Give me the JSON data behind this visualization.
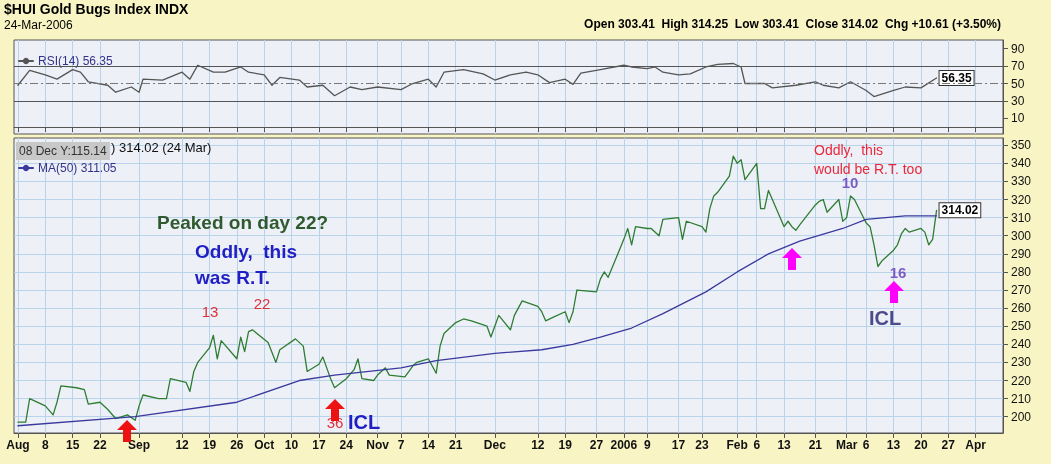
{
  "chart_data": [
    {
      "type": "line",
      "title": "$HUI Gold Bugs Index INDX",
      "subtitle": "24-Mar-2006",
      "annotations": [
        "Open 303.41  High 314.25  Low 303.41  Close 314.02  Chg +10.61 (+3.50%)"
      ],
      "xlim": [
        "2005-07-31",
        "2006-04-10"
      ],
      "xticks": [
        {
          "value": "2005-08-01",
          "label": null
        },
        {
          "value": "2005-08-08",
          "label": null
        },
        {
          "value": "2005-08-15",
          "label": null
        },
        {
          "value": "2005-08-22",
          "label": null
        },
        {
          "value": "2005-09-01",
          "label": null
        },
        {
          "value": "2005-09-12",
          "label": null
        },
        {
          "value": "2005-09-19",
          "label": null
        },
        {
          "value": "2005-09-26",
          "label": null
        },
        {
          "value": "2005-10-03",
          "label": null
        },
        {
          "value": "2005-10-10",
          "label": null
        },
        {
          "value": "2005-10-17",
          "label": null
        },
        {
          "value": "2005-10-24",
          "label": null
        },
        {
          "value": "2005-11-01",
          "label": null
        },
        {
          "value": "2005-11-07",
          "label": null
        },
        {
          "value": "2005-11-14",
          "label": null
        },
        {
          "value": "2005-11-21",
          "label": null
        },
        {
          "value": "2005-12-01",
          "label": null
        },
        {
          "value": "2005-12-12",
          "label": null
        },
        {
          "value": "2005-12-19",
          "label": null
        },
        {
          "value": "2005-12-27",
          "label": null
        },
        {
          "value": "2006-01-03",
          "label": null
        },
        {
          "value": "2006-01-09",
          "label": null
        },
        {
          "value": "2006-01-17",
          "label": null
        },
        {
          "value": "2006-01-23",
          "label": null
        },
        {
          "value": "2006-02-01",
          "label": null
        },
        {
          "value": "2006-02-06",
          "label": null
        },
        {
          "value": "2006-02-13",
          "label": null
        },
        {
          "value": "2006-02-21",
          "label": null
        },
        {
          "value": "2006-03-01",
          "label": null
        },
        {
          "value": "2006-03-06",
          "label": null
        },
        {
          "value": "2006-03-13",
          "label": null
        },
        {
          "value": "2006-03-20",
          "label": null
        },
        {
          "value": "2006-03-27",
          "label": null
        },
        {
          "value": "2006-04-03",
          "label": null
        }
      ],
      "ylim": [
        -8,
        100
      ],
      "yticks": [
        10,
        30,
        50,
        70,
        90
      ],
      "tick_labels": "y",
      "grid": "x",
      "legend": "top left",
      "marker": "none",
      "line_style": "solid",
      "ref_lines": [
        {
          "axis": "y",
          "value": 70,
          "color": "#555555",
          "line_style": "solid"
        },
        {
          "axis": "y",
          "value": 30,
          "color": "#555555",
          "line_style": "solid"
        },
        {
          "axis": "y",
          "value": 50,
          "color": "#777777",
          "line_style": "dashed"
        }
      ],
      "series": [
        {
          "name": "RSI(14) 56.35",
          "color": "#555555",
          "x": [
            "2005-08-01",
            "2005-08-04",
            "2005-08-08",
            "2005-08-11",
            "2005-08-15",
            "2005-08-17",
            "2005-08-19",
            "2005-08-24",
            "2005-08-26",
            "2005-08-30",
            "2005-09-01",
            "2005-09-02",
            "2005-09-07",
            "2005-09-12",
            "2005-09-14",
            "2005-09-16",
            "2005-09-20",
            "2005-09-23",
            "2005-09-27",
            "2005-09-29",
            "2005-10-03",
            "2005-10-05",
            "2005-10-07",
            "2005-10-12",
            "2005-10-14",
            "2005-10-18",
            "2005-10-21",
            "2005-10-25",
            "2005-10-28",
            "2005-11-01",
            "2005-11-07",
            "2005-11-10",
            "2005-11-14",
            "2005-11-16",
            "2005-11-18",
            "2005-11-23",
            "2005-11-28",
            "2005-12-01",
            "2005-12-05",
            "2005-12-09",
            "2005-12-12",
            "2005-12-15",
            "2005-12-19",
            "2005-12-21",
            "2005-12-23",
            "2005-12-28",
            "2006-01-03",
            "2006-01-05",
            "2006-01-09",
            "2006-01-11",
            "2006-01-13",
            "2006-01-17",
            "2006-01-20",
            "2006-01-24",
            "2006-01-27",
            "2006-01-31",
            "2006-02-02",
            "2006-02-03",
            "2006-02-08",
            "2006-02-10",
            "2006-02-16",
            "2006-02-21",
            "2006-02-23",
            "2006-02-27",
            "2006-03-02",
            "2006-03-06",
            "2006-03-08",
            "2006-03-13",
            "2006-03-16",
            "2006-03-20",
            "2006-03-24"
          ],
          "values": [
            48,
            65,
            60,
            55,
            66,
            63,
            52,
            48,
            40,
            46,
            40,
            55,
            54,
            63,
            55,
            71,
            63,
            63,
            69,
            63,
            60,
            48,
            57,
            54,
            46,
            48,
            36,
            46,
            43,
            46,
            43,
            50,
            55,
            46,
            63,
            66,
            61,
            54,
            60,
            63,
            60,
            51,
            55,
            49,
            62,
            66,
            71,
            69,
            67,
            69,
            63,
            60,
            61,
            69,
            72,
            73,
            69,
            50,
            50,
            45,
            48,
            52,
            48,
            45,
            52,
            42,
            35,
            42,
            46,
            45,
            56.35
          ],
          "value_labels": [
            null,
            null,
            null,
            null,
            null,
            null,
            null,
            null,
            null,
            null,
            null,
            null,
            null,
            null,
            null,
            null,
            null,
            null,
            null,
            null,
            null,
            null,
            null,
            null,
            null,
            null,
            null,
            null,
            null,
            null,
            null,
            null,
            null,
            null,
            null,
            null,
            null,
            null,
            null,
            null,
            null,
            null,
            null,
            null,
            null,
            null,
            null,
            null,
            null,
            null,
            null,
            null,
            null,
            null,
            null,
            null,
            null,
            null,
            null,
            null,
            null,
            null,
            null,
            null,
            null,
            null,
            null,
            null,
            null,
            null,
            "56.35"
          ]
        }
      ]
    },
    {
      "type": "line",
      "annotations": [
        "08 Dec Y:115.14",
        ") 314.02 (24 Mar)",
        "Peaked on day 22?",
        "Oddly,  this\nwas R.T.",
        "Oddly,  this\nwould be R.T. too",
        "13",
        "22",
        "36",
        "ICL",
        "10",
        "16",
        "ICL"
      ],
      "xlim": [
        "2005-07-31",
        "2006-04-10"
      ],
      "xticks": [
        {
          "value": "2005-08-01",
          "label": "Aug"
        },
        {
          "value": "2005-08-08",
          "label": "8"
        },
        {
          "value": "2005-08-15",
          "label": "15"
        },
        {
          "value": "2005-08-22",
          "label": "22"
        },
        {
          "value": "2005-09-01",
          "label": "Sep"
        },
        {
          "value": "2005-09-12",
          "label": "12"
        },
        {
          "value": "2005-09-19",
          "label": "19"
        },
        {
          "value": "2005-09-26",
          "label": "26"
        },
        {
          "value": "2005-10-03",
          "label": "Oct"
        },
        {
          "value": "2005-10-10",
          "label": "10"
        },
        {
          "value": "2005-10-17",
          "label": "17"
        },
        {
          "value": "2005-10-24",
          "label": "24"
        },
        {
          "value": "2005-11-01",
          "label": "Nov"
        },
        {
          "value": "2005-11-07",
          "label": "7"
        },
        {
          "value": "2005-11-14",
          "label": "14"
        },
        {
          "value": "2005-11-21",
          "label": "21"
        },
        {
          "value": "2005-12-01",
          "label": "Dec"
        },
        {
          "value": "2005-12-12",
          "label": "12"
        },
        {
          "value": "2005-12-19",
          "label": "19"
        },
        {
          "value": "2005-12-27",
          "label": "27"
        },
        {
          "value": "2006-01-03",
          "label": "2006"
        },
        {
          "value": "2006-01-09",
          "label": "9"
        },
        {
          "value": "2006-01-17",
          "label": "17"
        },
        {
          "value": "2006-01-23",
          "label": "23"
        },
        {
          "value": "2006-02-01",
          "label": "Feb"
        },
        {
          "value": "2006-02-06",
          "label": "6"
        },
        {
          "value": "2006-02-13",
          "label": "13"
        },
        {
          "value": "2006-02-21",
          "label": "21"
        },
        {
          "value": "2006-03-01",
          "label": "Mar"
        },
        {
          "value": "2006-03-06",
          "label": "6"
        },
        {
          "value": "2006-03-13",
          "label": "13"
        },
        {
          "value": "2006-03-20",
          "label": "20"
        },
        {
          "value": "2006-03-27",
          "label": "27"
        },
        {
          "value": "2006-04-03",
          "label": "Apr"
        }
      ],
      "ylim": [
        191,
        354
      ],
      "yticks": [
        200,
        210,
        220,
        230,
        240,
        250,
        260,
        270,
        280,
        290,
        300,
        310,
        320,
        330,
        340,
        350
      ],
      "grid": true,
      "legend": "top left",
      "marker": "none",
      "line_style": "solid",
      "series": [
        {
          "color": "#2e7d32",
          "x": [
            "2005-08-01",
            "2005-08-03",
            "2005-08-04",
            "2005-08-08",
            "2005-08-10",
            "2005-08-11",
            "2005-08-12",
            "2005-08-16",
            "2005-08-18",
            "2005-08-19",
            "2005-08-22",
            "2005-08-24",
            "2005-08-26",
            "2005-08-29",
            "2005-08-31",
            "2005-09-01",
            "2005-09-02",
            "2005-09-06",
            "2005-09-08",
            "2005-09-09",
            "2005-09-13",
            "2005-09-14",
            "2005-09-15",
            "2005-09-16",
            "2005-09-19",
            "2005-09-20",
            "2005-09-21",
            "2005-09-22",
            "2005-09-26",
            "2005-09-27",
            "2005-09-28",
            "2005-09-29",
            "2005-09-30",
            "2005-10-04",
            "2005-10-06",
            "2005-10-07",
            "2005-10-11",
            "2005-10-13",
            "2005-10-14",
            "2005-10-17",
            "2005-10-18",
            "2005-10-19",
            "2005-10-20",
            "2005-10-21",
            "2005-10-24",
            "2005-10-26",
            "2005-10-27",
            "2005-10-28",
            "2005-10-31",
            "2005-11-01",
            "2005-11-03",
            "2005-11-04",
            "2005-11-08",
            "2005-11-10",
            "2005-11-11",
            "2005-11-14",
            "2005-11-16",
            "2005-11-17",
            "2005-11-18",
            "2005-11-21",
            "2005-11-23",
            "2005-11-25",
            "2005-11-29",
            "2005-11-30",
            "2005-12-01",
            "2005-12-02",
            "2005-12-05",
            "2005-12-06",
            "2005-12-08",
            "2005-12-12",
            "2005-12-13",
            "2005-12-14",
            "2005-12-16",
            "2005-12-19",
            "2005-12-20",
            "2005-12-21",
            "2005-12-22",
            "2005-12-27",
            "2005-12-28",
            "2005-12-29",
            "2005-12-30",
            "2006-01-03",
            "2006-01-04",
            "2006-01-05",
            "2006-01-06",
            "2006-01-09",
            "2006-01-10",
            "2006-01-12",
            "2006-01-13",
            "2006-01-17",
            "2006-01-18",
            "2006-01-19",
            "2006-01-23",
            "2006-01-24",
            "2006-01-25",
            "2006-01-26",
            "2006-01-27",
            "2006-01-30",
            "2006-01-31",
            "2006-02-01",
            "2006-02-02",
            "2006-02-03",
            "2006-02-06",
            "2006-02-07",
            "2006-02-08",
            "2006-02-09",
            "2006-02-10",
            "2006-02-13",
            "2006-02-14",
            "2006-02-15",
            "2006-02-16",
            "2006-02-17",
            "2006-02-21",
            "2006-02-22",
            "2006-02-23",
            "2006-02-24",
            "2006-02-27",
            "2006-02-28",
            "2006-03-01",
            "2006-03-02",
            "2006-03-03",
            "2006-03-06",
            "2006-03-07",
            "2006-03-08",
            "2006-03-09",
            "2006-03-10",
            "2006-03-13",
            "2006-03-14",
            "2006-03-15",
            "2006-03-16",
            "2006-03-17",
            "2006-03-20",
            "2006-03-21",
            "2006-03-22",
            "2006-03-23",
            "2006-03-24"
          ],
          "values": [
            197,
            197,
            210,
            206,
            201,
            208,
            217,
            216,
            215,
            207,
            208,
            204,
            199,
            201,
            198,
            206,
            212,
            210,
            210,
            221,
            219,
            214,
            225,
            230,
            238,
            245,
            232,
            242,
            232,
            244,
            236,
            247,
            248,
            241,
            230,
            237,
            243,
            239,
            225,
            229,
            233,
            227,
            221,
            216,
            221,
            226,
            232,
            221,
            220,
            223,
            227,
            223,
            222,
            228,
            230,
            232,
            224,
            239,
            246,
            252,
            254,
            253,
            250,
            244,
            250,
            256,
            248,
            256,
            264,
            261,
            258,
            253,
            255,
            258,
            252,
            258,
            270,
            269,
            276,
            280,
            277,
            298,
            304,
            295,
            305,
            304,
            304,
            300,
            309,
            310,
            298,
            308,
            305,
            302,
            315,
            322,
            324,
            333,
            344,
            340,
            342,
            331,
            340,
            315,
            315,
            325,
            320,
            305,
            308,
            305,
            303,
            306,
            317,
            319,
            320,
            313,
            320,
            308,
            310,
            322,
            320,
            307,
            305,
            295,
            283,
            286,
            292,
            295,
            301,
            304,
            302,
            304,
            302,
            295,
            298,
            314.02
          ],
          "value_labels": [
            null,
            null,
            null,
            null,
            null,
            null,
            null,
            null,
            null,
            null,
            null,
            null,
            null,
            null,
            null,
            null,
            null,
            null,
            null,
            null,
            null,
            null,
            null,
            null,
            null,
            null,
            null,
            null,
            null,
            null,
            null,
            null,
            null,
            null,
            null,
            null,
            null,
            null,
            null,
            null,
            null,
            null,
            null,
            null,
            null,
            null,
            null,
            null,
            null,
            null,
            null,
            null,
            null,
            null,
            null,
            null,
            null,
            null,
            null,
            null,
            null,
            null,
            null,
            null,
            null,
            null,
            null,
            null,
            null,
            null,
            null,
            null,
            null,
            null,
            null,
            null,
            null,
            null,
            null,
            null,
            null,
            null,
            null,
            null,
            null,
            null,
            null,
            null,
            null,
            null,
            null,
            null,
            null,
            null,
            null,
            null,
            null,
            null,
            null,
            null,
            null,
            null,
            null,
            null,
            null,
            null,
            null,
            null,
            null,
            null,
            null,
            null,
            null,
            null,
            null,
            null,
            null,
            null,
            null,
            null,
            null,
            null,
            null,
            null,
            null,
            null,
            null,
            null,
            null,
            null,
            null,
            null,
            null,
            null,
            null,
            "314.02"
          ]
        },
        {
          "name": "MA(50) 311.05",
          "color": "#3a3a9e",
          "x": [
            "2005-08-01",
            "2005-08-31",
            "2005-09-26",
            "2005-10-12",
            "2005-10-21",
            "2005-11-07",
            "2005-11-16",
            "2005-12-01",
            "2005-12-13",
            "2005-12-21",
            "2005-12-28",
            "2006-01-05",
            "2006-01-13",
            "2006-01-24",
            "2006-02-01",
            "2006-02-09",
            "2006-02-17",
            "2006-02-28",
            "2006-03-06",
            "2006-03-16",
            "2006-03-24"
          ],
          "values": [
            195,
            200,
            208,
            220,
            223,
            227,
            231,
            235,
            237,
            240,
            244,
            249,
            257,
            269,
            280,
            290,
            297,
            304,
            309,
            311,
            311
          ]
        }
      ]
    }
  ]
}
